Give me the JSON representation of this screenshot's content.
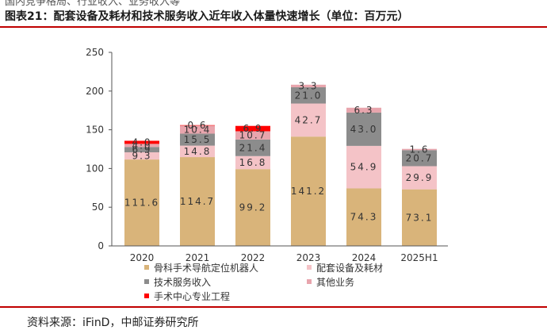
{
  "page": {
    "clipped_text": "国内竞争格局、行业收入、业务收入等",
    "title": "图表21：配套设备及耗材和技术服务收入近年收入体量快速增长（单位：百万元）",
    "source": "资料来源：iFinD，中邮证券研究所"
  },
  "colors": {
    "orthopedic": "#d9b47a",
    "supplies": "#f4c3c7",
    "tech": "#8c8c8c",
    "other": "#e8a5ad",
    "center": "#ff0000",
    "rule": "#c00000",
    "axis": "#555555"
  },
  "chart_data": {
    "type": "bar",
    "stacked": true,
    "title": "",
    "xlabel": "",
    "ylabel": "",
    "ylim": [
      0,
      250
    ],
    "yticks": [
      0,
      50,
      100,
      150,
      200,
      250
    ],
    "categories": [
      "2020",
      "2021",
      "2022",
      "2023",
      "2024",
      "2025H1"
    ],
    "series": [
      {
        "key": "orthopedic",
        "name": "骨科手术导航定位机器人",
        "values": [
          111.6,
          114.7,
          99.2,
          141.2,
          74.3,
          73.1
        ],
        "labels": [
          "111.6",
          "114.7",
          "99.2",
          "141.2",
          "74.3",
          "73.1"
        ]
      },
      {
        "key": "supplies",
        "name": "配套设备及耗材",
        "values": [
          9.3,
          14.8,
          16.8,
          42.7,
          54.9,
          29.9
        ],
        "labels": [
          "9.3",
          "14.8",
          "16.8",
          "42.7",
          "54.9",
          "29.9"
        ]
      },
      {
        "key": "tech",
        "name": "技术服务收入",
        "values": [
          6.9,
          15.5,
          21.4,
          21.0,
          43.0,
          20.7
        ],
        "labels": [
          "6.9",
          "15.5",
          "21.4",
          "21.0",
          "43.0",
          "20.7"
        ]
      },
      {
        "key": "other",
        "name": "其他业务",
        "values": [
          4.0,
          10.4,
          10.7,
          3.3,
          6.3,
          1.6
        ],
        "labels": [
          "4.0",
          "10.4",
          "10.7",
          "3.3",
          "6.3",
          "1.6"
        ]
      },
      {
        "key": "center",
        "name": "手术中心专业工程",
        "values": [
          4.0,
          0.6,
          6.9,
          0,
          0,
          0
        ],
        "labels": [
          "4.0",
          "0.6",
          "6.9",
          "",
          "",
          ""
        ]
      }
    ],
    "legend": {
      "placement": "bottom",
      "rows": [
        [
          "orthopedic",
          "supplies"
        ],
        [
          "tech",
          "other"
        ],
        [
          "center"
        ]
      ]
    }
  }
}
